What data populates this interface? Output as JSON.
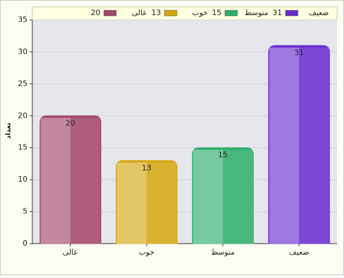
{
  "chart_data": {
    "type": "bar",
    "y_label": "تعداد",
    "categories": [
      "عالی",
      "خوب",
      "متوسط",
      "ضعیف"
    ],
    "values": [
      20,
      13,
      15,
      31
    ],
    "colors": [
      "#a3486c",
      "#d4a814",
      "#2fae6c",
      "#6a2ed0"
    ],
    "ylim": [
      0,
      35
    ],
    "yticks": [
      0,
      5,
      10,
      15,
      20,
      25,
      30,
      35
    ],
    "grid": true
  }
}
